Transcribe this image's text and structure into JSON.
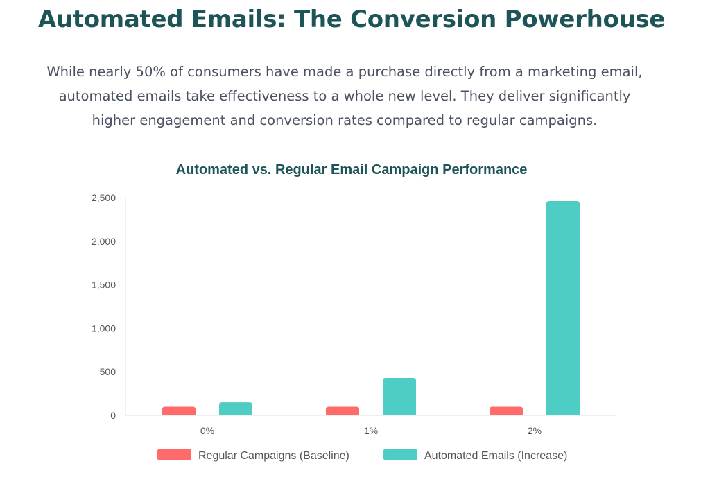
{
  "page": {
    "title": "Automated Emails: The Conversion Powerhouse",
    "intro_lines": [
      "While nearly 50% of consumers have made a purchase directly from a marketing email,",
      "automated emails take effectiveness to a whole new level. They deliver significantly",
      "higher engagement and conversion rates compared to regular campaigns."
    ]
  },
  "colors": {
    "title": "#1d5457",
    "text": "#4a5160",
    "regular": "#ff6b6b",
    "automated": "#4ecdc4",
    "axis_text": "#555555",
    "axis_line": "#e0e0e0"
  },
  "chart_data": {
    "type": "bar",
    "title": "Automated vs. Regular Email Campaign Performance",
    "categories": [
      "0%",
      "1%",
      "2%"
    ],
    "series": [
      {
        "name": "Regular Campaigns (Baseline)",
        "values": [
          100,
          100,
          100
        ],
        "color": "#ff6b6b"
      },
      {
        "name": "Automated Emails (Increase)",
        "values": [
          150,
          430,
          2460
        ],
        "color": "#4ecdc4"
      }
    ],
    "y_ticks": [
      "0",
      "500",
      "1,000",
      "1,500",
      "2,000",
      "2,500"
    ],
    "ylim": [
      0,
      2500
    ],
    "xlabel": "",
    "ylabel": "",
    "grid": false,
    "legend_position": "bottom"
  }
}
